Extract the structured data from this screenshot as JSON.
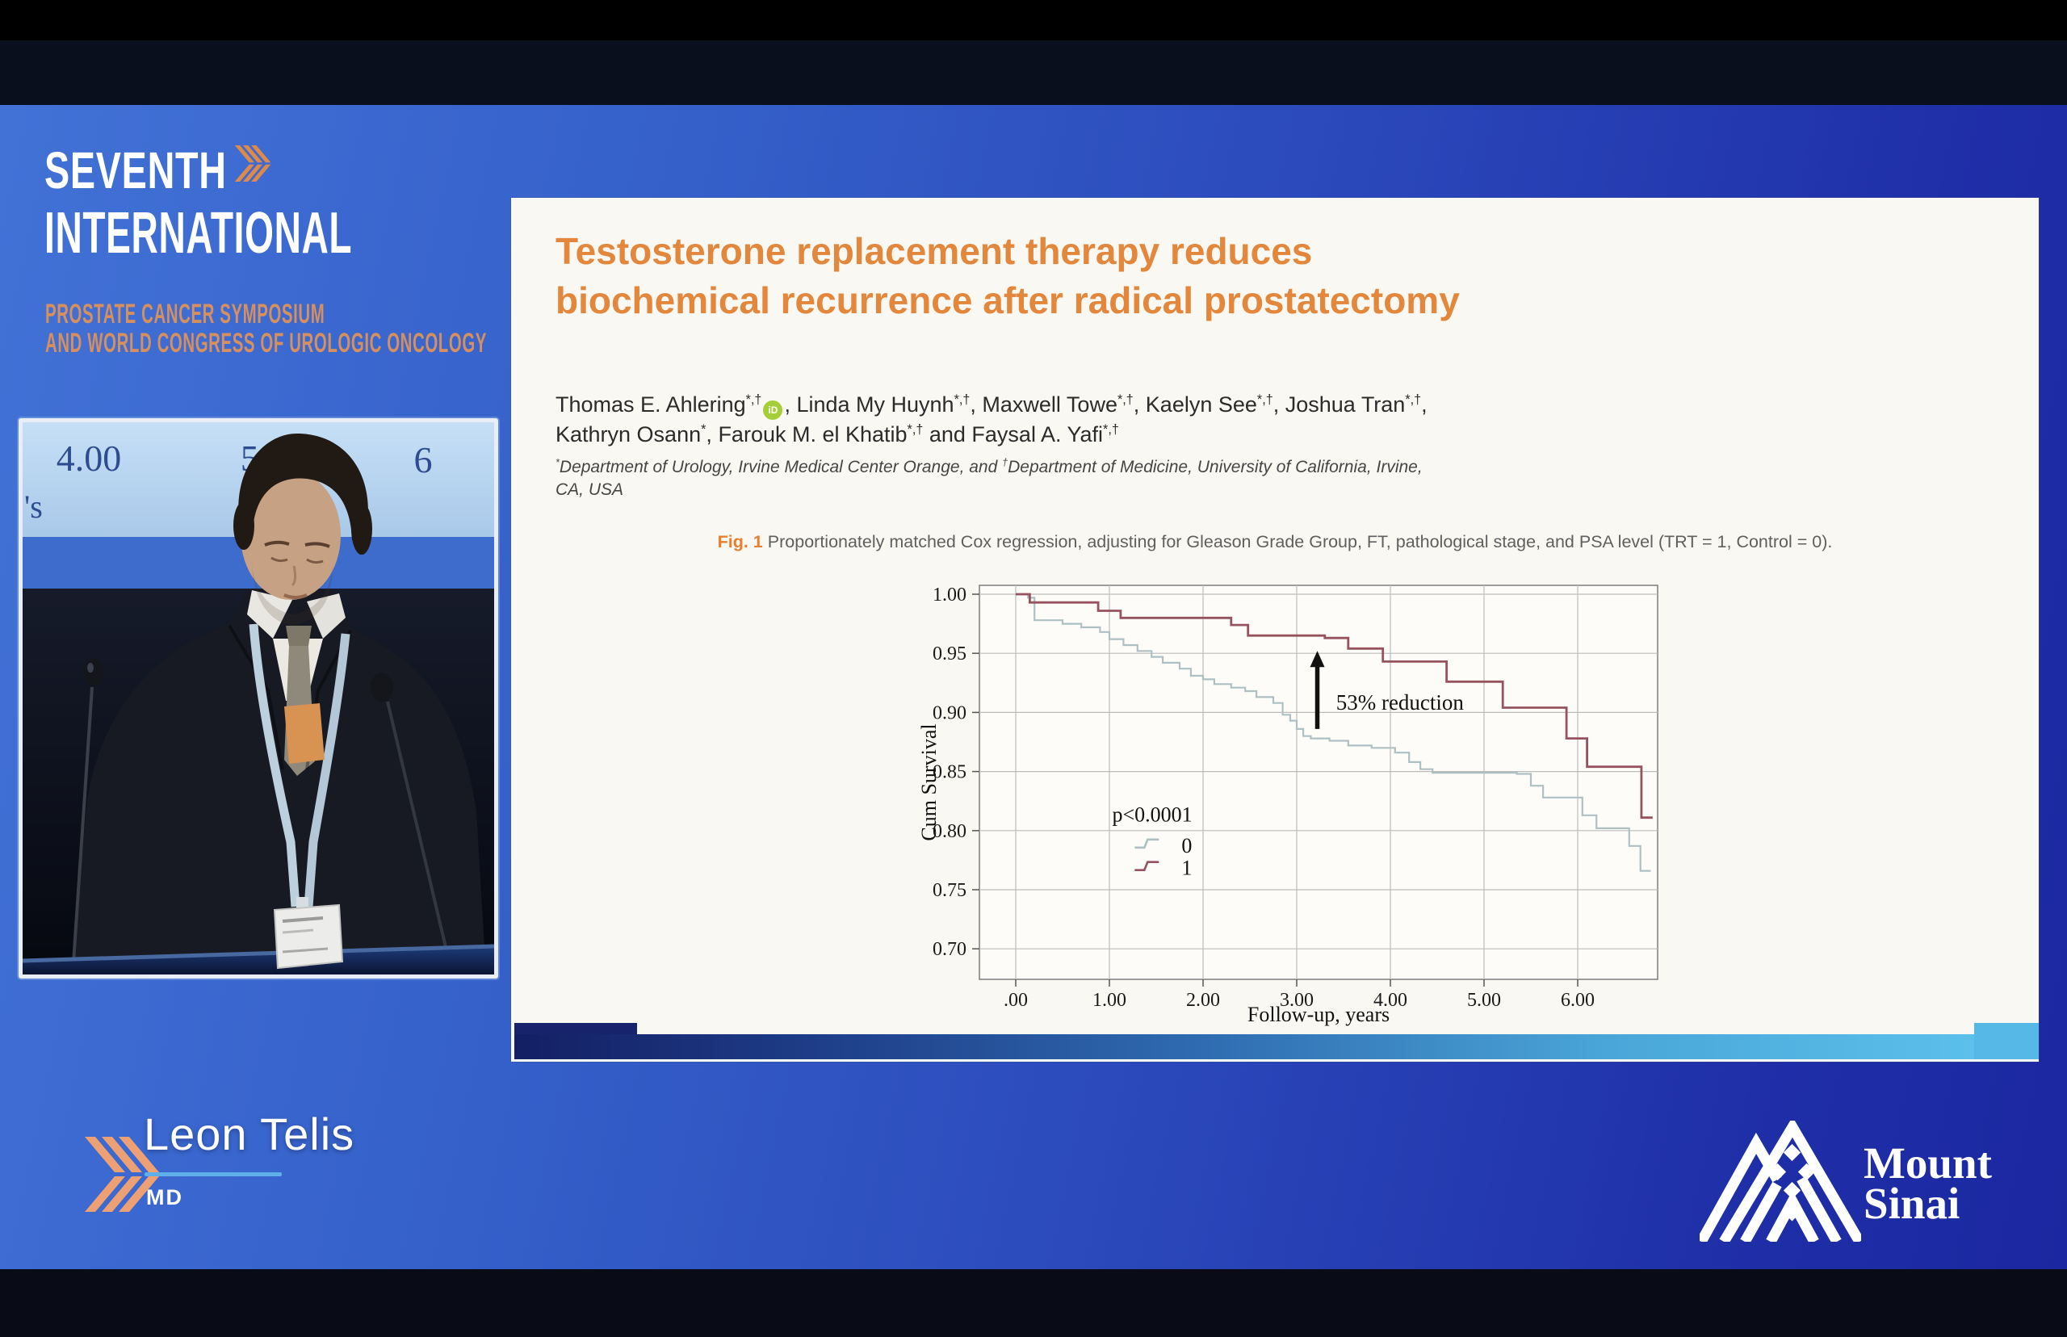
{
  "colors": {
    "accent_orange": "#e2873b",
    "fig_label_orange": "#e87f2f",
    "logo_subtitle_orange": "#d68f5e",
    "chevron_orange": "#eda073",
    "underline_blue": "#5fb0e8",
    "slide_bg": "#faf8f3",
    "curve_control": "#aec0c4",
    "curve_trt": "#96535e"
  },
  "stage": {
    "conference_logo": {
      "line1": "SEVENTH",
      "line2": "INTERNATIONAL",
      "subtitle1": "PROSTATE CANCER SYMPOSIUM",
      "subtitle2": "AND WORLD CONGRESS OF UROLOGIC ONCOLOGY"
    },
    "video_feed": {
      "labels": [
        "4.00",
        "5.00",
        "6",
        "'s"
      ]
    },
    "lower_third": {
      "name": "Leon Telis",
      "credentials": "MD"
    },
    "mount_sinai": {
      "line1": "Mount",
      "line2": "Sinai"
    }
  },
  "slide": {
    "paper_title": "Testosterone replacement therapy reduces biochemical recurrence after radical prostatectomy",
    "authors": [
      {
        "name": "Thomas E. Ahlering",
        "sup": "*,†",
        "orcid": true
      },
      {
        "name": "Linda My Huynh",
        "sup": "*,†"
      },
      {
        "name": "Maxwell Towe",
        "sup": "*,†"
      },
      {
        "name": "Kaelyn See",
        "sup": "*,†"
      },
      {
        "name": "Joshua Tran",
        "sup": "*,†"
      },
      {
        "name": "Kathryn Osann",
        "sup": "*"
      },
      {
        "name": "Farouk M. el Khatib",
        "sup": "*,†"
      },
      {
        "name": "Faysal A. Yafi",
        "sup": "*,†"
      }
    ],
    "orcid_icon_text": "iD",
    "affiliation_segments": [
      {
        "t": "*",
        "sup": true
      },
      {
        "t": "Department of Urology, Irvine Medical Center Orange, and "
      },
      {
        "t": "†",
        "sup": true
      },
      {
        "t": "Department of Medicine, University of California, Irvine, CA, USA"
      }
    ],
    "figure_caption": {
      "label": "Fig. 1",
      "text": "Proportionately matched Cox regression, adjusting for Gleason Grade Group, FT, pathological stage, and PSA level (TRT = 1, Control = 0)."
    }
  },
  "chart_data": {
    "type": "line",
    "subtype": "kaplan-meier-step",
    "title": "",
    "xlabel": "Follow-up, years",
    "ylabel": "Cum Survival",
    "xlim": [
      -0.39,
      6.85
    ],
    "ylim": [
      0.674,
      1.008
    ],
    "grid": true,
    "xticks": {
      "values": [
        0,
        1,
        2,
        3,
        4,
        5,
        6
      ],
      "labels": [
        ".00",
        "1.00",
        "2.00",
        "3.00",
        "4.00",
        "5.00",
        "6.00"
      ]
    },
    "yticks": {
      "values": [
        1.0,
        0.95,
        0.9,
        0.85,
        0.8,
        0.75,
        0.7
      ],
      "labels": [
        "1.00",
        "0.95",
        "0.90",
        "0.85",
        "0.80",
        "0.75",
        "0.70"
      ]
    },
    "p_value": {
      "text": "p<0.0001",
      "x": 1.03,
      "y": 0.814
    },
    "annotation": {
      "text": "53% reduction",
      "text_x": 3.42,
      "text_y": 0.9085,
      "arrow_x": 3.22,
      "arrow_y_from": 0.886,
      "arrow_y_to": 0.952
    },
    "legend": {
      "x": 1.77,
      "y": 0.787,
      "row_step": 0.019,
      "entries": [
        {
          "label": "0",
          "series": "control"
        },
        {
          "label": "1",
          "series": "trt"
        }
      ]
    },
    "series": [
      {
        "name": "0",
        "role": "control",
        "color": "#aec0c4",
        "width": 2.2,
        "step_points": [
          [
            0,
            1.0
          ],
          [
            0.13,
            0.997
          ],
          [
            0.2,
            0.978
          ],
          [
            0.5,
            0.975
          ],
          [
            0.7,
            0.972
          ],
          [
            0.9,
            0.968
          ],
          [
            1.0,
            0.962
          ],
          [
            1.15,
            0.957
          ],
          [
            1.3,
            0.952
          ],
          [
            1.45,
            0.947
          ],
          [
            1.57,
            0.942
          ],
          [
            1.75,
            0.937
          ],
          [
            1.87,
            0.931
          ],
          [
            2.0,
            0.928
          ],
          [
            2.12,
            0.924
          ],
          [
            2.3,
            0.921
          ],
          [
            2.45,
            0.918
          ],
          [
            2.57,
            0.913
          ],
          [
            2.75,
            0.908
          ],
          [
            2.85,
            0.898
          ],
          [
            2.93,
            0.893
          ],
          [
            3.0,
            0.886
          ],
          [
            3.07,
            0.88
          ],
          [
            3.15,
            0.878
          ],
          [
            3.35,
            0.876
          ],
          [
            3.55,
            0.872
          ],
          [
            3.8,
            0.87
          ],
          [
            4.05,
            0.866
          ],
          [
            4.2,
            0.858
          ],
          [
            4.32,
            0.852
          ],
          [
            4.45,
            0.849
          ],
          [
            5.35,
            0.848
          ],
          [
            5.5,
            0.838
          ],
          [
            5.63,
            0.828
          ],
          [
            6.05,
            0.813
          ],
          [
            6.2,
            0.802
          ],
          [
            6.55,
            0.787
          ],
          [
            6.67,
            0.766
          ],
          [
            6.78,
            0.766
          ]
        ]
      },
      {
        "name": "1",
        "role": "trt",
        "color": "#96535e",
        "width": 2.8,
        "step_points": [
          [
            0,
            1.0
          ],
          [
            0.15,
            0.993
          ],
          [
            0.88,
            0.986
          ],
          [
            1.12,
            0.98
          ],
          [
            2.3,
            0.974
          ],
          [
            2.48,
            0.965
          ],
          [
            3.3,
            0.963
          ],
          [
            3.55,
            0.954
          ],
          [
            3.92,
            0.943
          ],
          [
            4.6,
            0.926
          ],
          [
            5.2,
            0.904
          ],
          [
            5.88,
            0.878
          ],
          [
            6.1,
            0.854
          ],
          [
            6.68,
            0.811
          ],
          [
            6.8,
            0.811
          ]
        ]
      }
    ]
  }
}
